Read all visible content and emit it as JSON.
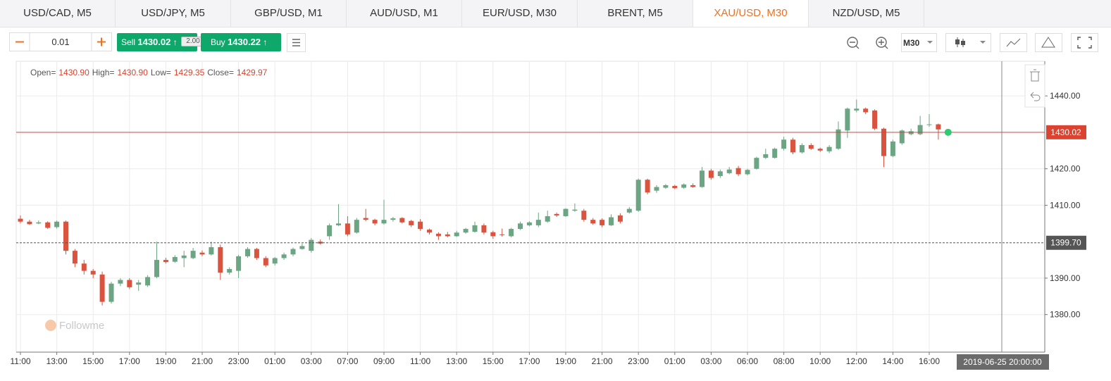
{
  "tabs": [
    "USD/CAD, M5",
    "USD/JPY, M5",
    "GBP/USD, M1",
    "AUD/USD, M1",
    "EUR/USD, M30",
    "BRENT, M5",
    "XAU/USD, M30",
    "NZD/USD, M5"
  ],
  "active_tab": 6,
  "toolbar": {
    "lot": "0.01",
    "sell": {
      "label": "Sell",
      "price": "1430.02"
    },
    "spread": "2.00",
    "buy": {
      "label": "Buy",
      "price": "1430.22"
    },
    "timeframe": "M30"
  },
  "chart_data": {
    "type": "candlestick",
    "readout": [
      {
        "name": "Open=",
        "value": "1430.90"
      },
      {
        "name": "High=",
        "value": "1430.90"
      },
      {
        "name": "Low=",
        "value": "1429.35"
      },
      {
        "name": "Close=",
        "value": "1429.97"
      }
    ],
    "watermark": "Followme",
    "up_color": "#6ba583",
    "down_color": "#d9533f",
    "grid": true,
    "ylim": [
      1369.7,
      1449.5
    ],
    "yticks": [
      {
        "value": 1380,
        "label": "1380.00"
      },
      {
        "value": 1390,
        "label": "1390.00"
      },
      {
        "value": 1410,
        "label": "1410.00"
      },
      {
        "value": 1420,
        "label": "1420.00"
      },
      {
        "value": 1440,
        "label": "1440.00"
      }
    ],
    "price_lines": [
      {
        "value": 1430.02,
        "color": "#d9432f",
        "dash": false
      },
      {
        "value": 1399.7,
        "label": "1399.70",
        "color": "#555555",
        "dash": true
      }
    ],
    "crosshair_label": "2019-06-25 20:00:00",
    "categories": [
      "11:00",
      null,
      null,
      null,
      "13:00",
      null,
      null,
      null,
      "15:00",
      null,
      null,
      null,
      "17:00",
      null,
      null,
      null,
      "19:00",
      null,
      null,
      null,
      "21:00",
      null,
      null,
      null,
      "23:00",
      null,
      null,
      null,
      "01:00",
      null,
      null,
      null,
      "03:00",
      null,
      null,
      null,
      "07:00",
      null,
      null,
      null,
      "09:00",
      null,
      null,
      null,
      "11:00",
      null,
      null,
      null,
      "13:00",
      null,
      null,
      null,
      "15:00",
      null,
      null,
      null,
      "17:00",
      null,
      null,
      null,
      "19:00",
      null,
      null,
      null,
      "21:00",
      null,
      null,
      null,
      "23:00",
      null,
      null,
      null,
      "01:00",
      null,
      null,
      null,
      "03:00",
      null,
      null,
      null,
      "06:00",
      null,
      null,
      null,
      "08:00",
      null,
      null,
      null,
      "10:00",
      null,
      null,
      null,
      "12:00",
      null,
      null,
      null,
      "14:00",
      null,
      null,
      null,
      "16:00",
      null
    ],
    "ohlc": [
      [
        1406.3,
        1407.2,
        1405,
        1405.5
      ],
      [
        1405.5,
        1406,
        1404.6,
        1404.8
      ],
      [
        1405,
        1405.8,
        1404.8,
        1405.3
      ],
      [
        1405.3,
        1405.6,
        1403.5,
        1403.8
      ],
      [
        1404,
        1405.8,
        1403.6,
        1405.5
      ],
      [
        1405.5,
        1405.8,
        1396.5,
        1397.5
      ],
      [
        1397.5,
        1398,
        1393,
        1394
      ],
      [
        1394,
        1395,
        1391,
        1392
      ],
      [
        1392,
        1392.5,
        1390,
        1391
      ],
      [
        1391,
        1391.8,
        1382.5,
        1383.5
      ],
      [
        1383.5,
        1389,
        1383,
        1388.5
      ],
      [
        1388.5,
        1390,
        1387.8,
        1389.5
      ],
      [
        1389.5,
        1390,
        1387,
        1387.5
      ],
      [
        1388.2,
        1389.5,
        1386.5,
        1388.8
      ],
      [
        1388,
        1390.8,
        1387.6,
        1390.3
      ],
      [
        1390.3,
        1400,
        1390,
        1395
      ],
      [
        1395,
        1395.6,
        1394,
        1394.4
      ],
      [
        1394.5,
        1396.3,
        1394.2,
        1395.8
      ],
      [
        1395.5,
        1397.5,
        1393,
        1396.2
      ],
      [
        1395.5,
        1398.3,
        1395.2,
        1397.5
      ],
      [
        1397,
        1397.6,
        1396,
        1396.5
      ],
      [
        1396.5,
        1400,
        1396.2,
        1398.5
      ],
      [
        1398.5,
        1399.2,
        1389.5,
        1391.5
      ],
      [
        1391.5,
        1393,
        1391,
        1392.5
      ],
      [
        1392,
        1396.4,
        1390,
        1396
      ],
      [
        1396,
        1398.5,
        1395.6,
        1398
      ],
      [
        1398,
        1398.3,
        1395,
        1395.5
      ],
      [
        1395.5,
        1396,
        1393,
        1393.5
      ],
      [
        1394,
        1395.8,
        1393.5,
        1395.5
      ],
      [
        1395.5,
        1397,
        1395,
        1396.5
      ],
      [
        1396.5,
        1398.4,
        1396,
        1398
      ],
      [
        1398,
        1399.5,
        1397.8,
        1398.8
      ],
      [
        1397.5,
        1401,
        1397,
        1400.5
      ],
      [
        1400,
        1400.6,
        1399.2,
        1399.5
      ],
      [
        1401.5,
        1405,
        1400.5,
        1404.5
      ],
      [
        1404.5,
        1410.3,
        1404.3,
        1405
      ],
      [
        1405,
        1407,
        1401.5,
        1402
      ],
      [
        1402.5,
        1406.5,
        1402.2,
        1406
      ],
      [
        1406.5,
        1409,
        1405.6,
        1406
      ],
      [
        1406,
        1406.3,
        1404.5,
        1405
      ],
      [
        1405,
        1411.5,
        1404.7,
        1406
      ],
      [
        1406,
        1406.8,
        1405.5,
        1406.4
      ],
      [
        1406.5,
        1406.7,
        1405,
        1405.3
      ],
      [
        1405.7,
        1406,
        1404,
        1404.5
      ],
      [
        1405.5,
        1406.2,
        1403,
        1403.5
      ],
      [
        1403.3,
        1403.6,
        1402,
        1402.5
      ],
      [
        1402.2,
        1402.6,
        1400.5,
        1401.5
      ],
      [
        1402,
        1402.7,
        1401.2,
        1401.5
      ],
      [
        1401.5,
        1403,
        1401.3,
        1402.5
      ],
      [
        1402.5,
        1403.8,
        1402.2,
        1403.5
      ],
      [
        1402.7,
        1405.5,
        1402.5,
        1404.5
      ],
      [
        1404.5,
        1405,
        1402,
        1402.5
      ],
      [
        1402.6,
        1403,
        1400.8,
        1401.5
      ],
      [
        1402,
        1403.6,
        1401.4,
        1401.8
      ],
      [
        1401.5,
        1403.8,
        1401.2,
        1403.5
      ],
      [
        1403.5,
        1405.5,
        1403.2,
        1405
      ],
      [
        1404.5,
        1405.6,
        1404.2,
        1405.3
      ],
      [
        1404.5,
        1408,
        1404,
        1406
      ],
      [
        1405.5,
        1408.5,
        1405.2,
        1407
      ],
      [
        1407.6,
        1408,
        1406.8,
        1407.2
      ],
      [
        1407,
        1409.2,
        1406.8,
        1409
      ],
      [
        1408.5,
        1410.5,
        1408.2,
        1408.8
      ],
      [
        1408.5,
        1409,
        1405.5,
        1406
      ],
      [
        1406,
        1406.5,
        1404.6,
        1405
      ],
      [
        1406,
        1406.4,
        1404,
        1404.5
      ],
      [
        1404.5,
        1407.5,
        1404.3,
        1406.7
      ],
      [
        1407.2,
        1407.8,
        1405,
        1405.5
      ],
      [
        1408,
        1409.5,
        1407.7,
        1409
      ],
      [
        1408.5,
        1417.3,
        1408.2,
        1417
      ],
      [
        1417,
        1417.3,
        1413,
        1413.5
      ],
      [
        1414,
        1415.5,
        1413.4,
        1415
      ],
      [
        1414.8,
        1415.8,
        1414.5,
        1415.5
      ],
      [
        1415.3,
        1415.6,
        1414.4,
        1414.7
      ],
      [
        1414.8,
        1416,
        1414.5,
        1415.7
      ],
      [
        1415.5,
        1416,
        1414.8,
        1415
      ],
      [
        1415,
        1420.5,
        1414.8,
        1419.5
      ],
      [
        1419.5,
        1420,
        1417,
        1417.5
      ],
      [
        1418,
        1419.8,
        1417.5,
        1419.3
      ],
      [
        1418.8,
        1420.5,
        1418.5,
        1419.8
      ],
      [
        1420.2,
        1420.8,
        1418,
        1418.5
      ],
      [
        1418.5,
        1420,
        1418.2,
        1419.7
      ],
      [
        1420,
        1423.3,
        1419.8,
        1423
      ],
      [
        1423,
        1425.5,
        1422.7,
        1424
      ],
      [
        1423,
        1425.8,
        1422.8,
        1425.5
      ],
      [
        1425.5,
        1428.8,
        1425,
        1428
      ],
      [
        1428,
        1428.5,
        1424,
        1424.5
      ],
      [
        1424.5,
        1427,
        1424.2,
        1426.5
      ],
      [
        1426.5,
        1427,
        1425.2,
        1425.5
      ],
      [
        1425.5,
        1425.8,
        1424.6,
        1425
      ],
      [
        1424.8,
        1426.5,
        1424.3,
        1426
      ],
      [
        1425.5,
        1433,
        1425.2,
        1430.8
      ],
      [
        1430.5,
        1436.8,
        1428.5,
        1436.5
      ],
      [
        1436,
        1439,
        1435.5,
        1436.5
      ],
      [
        1436.5,
        1436.8,
        1435,
        1435.5
      ],
      [
        1436,
        1436.3,
        1430.6,
        1431
      ],
      [
        1431,
        1431.3,
        1420.5,
        1423.5
      ],
      [
        1423.5,
        1428,
        1423.2,
        1427.5
      ],
      [
        1427,
        1430.8,
        1426.6,
        1430.5
      ],
      [
        1429.5,
        1431,
        1429.2,
        1430.3
      ],
      [
        1429.5,
        1434.5,
        1429.2,
        1432
      ],
      [
        1432,
        1435,
        1431.5,
        1432.2
      ],
      [
        1432.2,
        1432.4,
        1428,
        1430.8
      ]
    ]
  }
}
